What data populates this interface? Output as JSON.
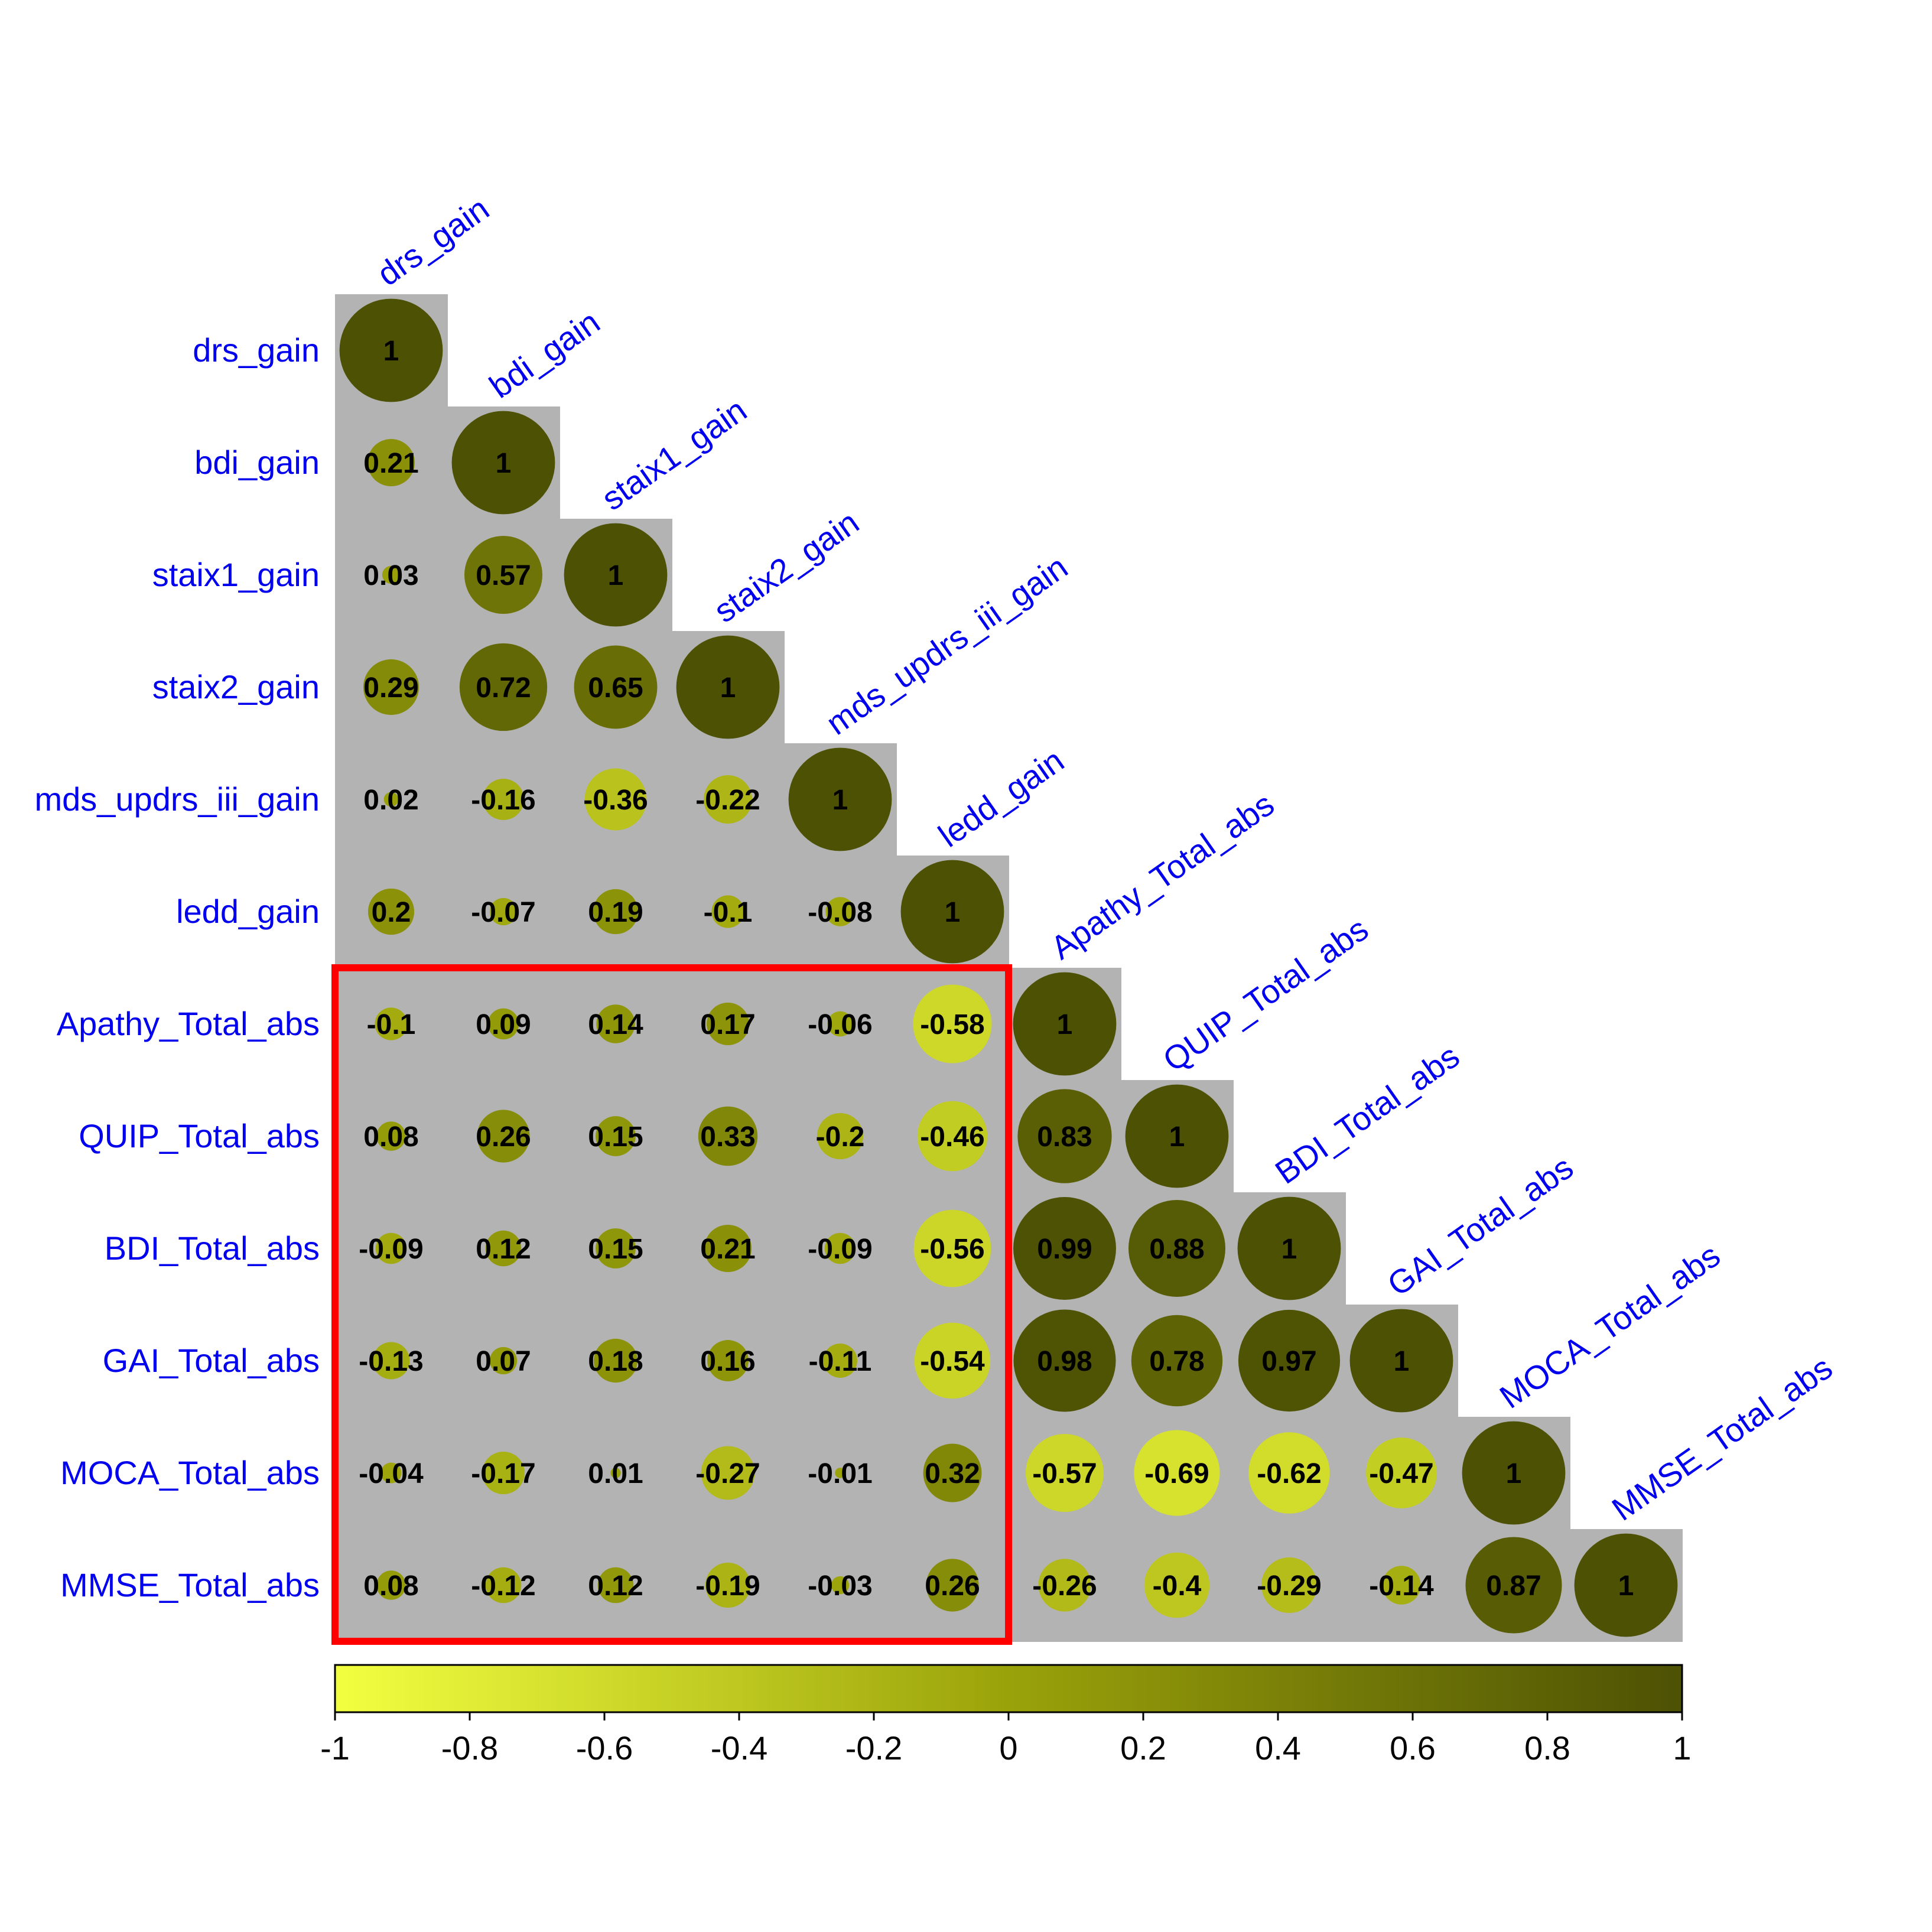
{
  "chart_data": {
    "type": "heatmap",
    "title": "",
    "variables": [
      "drs_gain",
      "bdi_gain",
      "staix1_gain",
      "staix2_gain",
      "mds_updrs_iii_gain",
      "ledd_gain",
      "Apathy_Total_abs",
      "QUIP_Total_abs",
      "BDI_Total_abs",
      "GAI_Total_abs",
      "MOCA_Total_abs",
      "MMSE_Total_abs"
    ],
    "matrix_lower": [
      [
        1
      ],
      [
        0.21,
        1
      ],
      [
        0.03,
        0.57,
        1
      ],
      [
        0.29,
        0.72,
        0.65,
        1
      ],
      [
        0.02,
        -0.16,
        -0.36,
        -0.22,
        1
      ],
      [
        0.2,
        -0.07,
        0.19,
        -0.1,
        -0.08,
        1
      ],
      [
        -0.1,
        0.09,
        0.14,
        0.17,
        -0.06,
        -0.58,
        1
      ],
      [
        0.08,
        0.26,
        0.15,
        0.33,
        -0.2,
        -0.46,
        0.83,
        1
      ],
      [
        -0.09,
        0.12,
        0.15,
        0.21,
        -0.09,
        -0.56,
        0.99,
        0.88,
        1
      ],
      [
        -0.13,
        0.07,
        0.18,
        0.16,
        -0.11,
        -0.54,
        0.98,
        0.78,
        0.97,
        1
      ],
      [
        -0.04,
        -0.17,
        0.01,
        -0.27,
        -0.01,
        0.32,
        -0.57,
        -0.69,
        -0.62,
        -0.47,
        1
      ],
      [
        0.08,
        -0.12,
        0.12,
        -0.19,
        -0.03,
        0.26,
        -0.26,
        -0.4,
        -0.29,
        -0.14,
        0.87,
        1
      ]
    ],
    "display_labels": [
      [
        "1"
      ],
      [
        "0.21",
        "1"
      ],
      [
        "0.03",
        "0.57",
        "1"
      ],
      [
        "0.29",
        "0.72",
        "0.65",
        "1"
      ],
      [
        "0.02",
        "-0.16",
        "-0.36",
        "-0.22",
        "1"
      ],
      [
        "0.2",
        "-0.07",
        "0.19",
        "-0.1",
        "-0.08",
        "1"
      ],
      [
        "-0.1",
        "0.09",
        "0.14",
        "0.17",
        "-0.06",
        "-0.58",
        "1"
      ],
      [
        "0.08",
        "0.26",
        "0.15",
        "0.33",
        "-0.2",
        "-0.46",
        "0.83",
        "1"
      ],
      [
        "-0.09",
        "0.12",
        "0.15",
        "0.21",
        "-0.09",
        "-0.56",
        "0.99",
        "0.88",
        "1"
      ],
      [
        "-0.13",
        "0.07",
        "0.18",
        "0.16",
        "-0.11",
        "-0.54",
        "0.98",
        "0.78",
        "0.97",
        "1"
      ],
      [
        "-0.04",
        "-0.17",
        "0.01",
        "-0.27",
        "-0.01",
        "0.32",
        "-0.57",
        "-0.69",
        "-0.62",
        "-0.47",
        "1"
      ],
      [
        "0.08",
        "-0.12",
        "0.12",
        "-0.19",
        "-0.03",
        "0.26",
        "-0.26",
        "-0.4",
        "-0.29",
        "-0.14",
        "0.87",
        "1"
      ]
    ],
    "color_scale": {
      "range": [
        -1,
        1
      ],
      "low_color": "#f2ff40",
      "mid_color": "#9aa20a",
      "high_color": "#4d5104",
      "ticks": [
        -1,
        -0.8,
        -0.6,
        -0.4,
        -0.2,
        0,
        0.2,
        0.4,
        0.6,
        0.8,
        1
      ],
      "tick_labels": [
        "-1",
        "-0.8",
        "-0.6",
        "-0.4",
        "-0.2",
        "0",
        "0.2",
        "0.4",
        "0.6",
        "0.8",
        "1"
      ],
      "orientation": "horizontal",
      "placement": "bottom"
    },
    "background_color": "#b3b3b3",
    "label_color": "#0000ee",
    "highlight": {
      "rows": [
        "Apathy_Total_abs",
        "MMSE_Total_abs"
      ],
      "cols": [
        "drs_gain",
        "ledd_gain"
      ],
      "color": "#ff0000"
    }
  }
}
